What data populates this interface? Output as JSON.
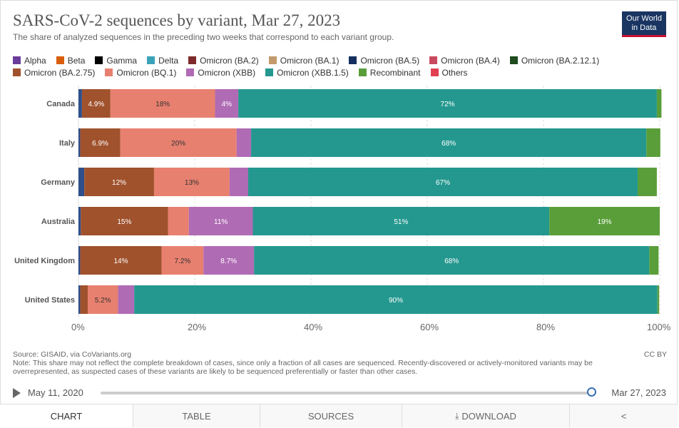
{
  "header": {
    "title": "SARS-CoV-2 sequences by variant, Mar 27, 2023",
    "subtitle": "The share of analyzed sequences in the preceding two weeks that correspond to each variant group.",
    "logo_line1": "Our World",
    "logo_line2": "in Data"
  },
  "legend": [
    {
      "label": "Alpha",
      "color": "#6a3d9a"
    },
    {
      "label": "Beta",
      "color": "#d95f0e"
    },
    {
      "label": "Gamma",
      "color": "#000000"
    },
    {
      "label": "Delta",
      "color": "#3ba3b8"
    },
    {
      "label": "Omicron (BA.2)",
      "color": "#7f2a2a"
    },
    {
      "label": "Omicron (BA.1)",
      "color": "#c29a6b"
    },
    {
      "label": "Omicron (BA.5)",
      "color": "#15305f"
    },
    {
      "label": "Omicron (BA.4)",
      "color": "#c94a5e"
    },
    {
      "label": "Omicron (BA.2.12.1)",
      "color": "#1f4b1f"
    },
    {
      "label": "Omicron (BA.2.75)",
      "color": "#a0522d"
    },
    {
      "label": "Omicron (BQ.1)",
      "color": "#e8806f"
    },
    {
      "label": "Omicron (XBB)",
      "color": "#b06bb5"
    },
    {
      "label": "Omicron (XBB.1.5)",
      "color": "#24988f"
    },
    {
      "label": "Recombinant",
      "color": "#5a9e3a"
    },
    {
      "label": "Others",
      "color": "#e04050"
    }
  ],
  "chart_data": {
    "type": "bar",
    "orientation": "horizontal",
    "stacked": true,
    "title": "SARS-CoV-2 sequences by variant, Mar 27, 2023",
    "xlim": [
      0,
      100
    ],
    "x_ticks": [
      "0%",
      "20%",
      "40%",
      "60%",
      "80%",
      "100%"
    ],
    "categories": [
      "Canada",
      "Italy",
      "Germany",
      "Australia",
      "United Kingdom",
      "United States"
    ],
    "series": [
      {
        "name": "Omicron (BA.5)",
        "color": "#2e4f8a",
        "values": [
          0.6,
          0.3,
          1.0,
          0.4,
          0.3,
          0.3
        ]
      },
      {
        "name": "Omicron (BA.2.75)",
        "color": "#a0522d",
        "values": [
          4.9,
          6.9,
          12,
          15,
          14,
          1.3
        ]
      },
      {
        "name": "Omicron (BQ.1)",
        "color": "#e8806f",
        "values": [
          18,
          20,
          13,
          3.6,
          7.2,
          5.2
        ]
      },
      {
        "name": "Omicron (XBB)",
        "color": "#b06bb5",
        "values": [
          4,
          2.5,
          3.2,
          11,
          8.7,
          2.8
        ]
      },
      {
        "name": "Omicron (XBB.1.5)",
        "color": "#24988f",
        "values": [
          72,
          68,
          67,
          51,
          68,
          90
        ]
      },
      {
        "name": "Recombinant",
        "color": "#5a9e3a",
        "values": [
          0.8,
          2.4,
          3.3,
          19,
          1.6,
          0.3
        ]
      }
    ],
    "data_labels": [
      [
        "",
        "4.9%",
        "18%",
        "4%",
        "72%",
        ""
      ],
      [
        "",
        "6.9%",
        "20%",
        "",
        "68%",
        ""
      ],
      [
        "",
        "12%",
        "13%",
        "",
        "67%",
        ""
      ],
      [
        "",
        "15%",
        "",
        "11%",
        "51%",
        "19%"
      ],
      [
        "",
        "14%",
        "7.2%",
        "8.7%",
        "68%",
        ""
      ],
      [
        "",
        "",
        "5.2%",
        "",
        "90%",
        ""
      ]
    ]
  },
  "footer": {
    "source": "Source: GISAID, via CoVariants.org",
    "note": "Note: This share may not reflect the complete breakdown of cases, since only a fraction of all cases are sequenced. Recently-discovered or actively-monitored variants may be overrepresented, as suspected cases of these variants are likely to be sequenced preferentially or faster than other cases.",
    "license": "CC BY"
  },
  "timeline": {
    "start": "May 11, 2020",
    "end": "Mar 27, 2023"
  },
  "tabs": [
    "CHART",
    "TABLE",
    "SOURCES",
    "DOWNLOAD"
  ]
}
